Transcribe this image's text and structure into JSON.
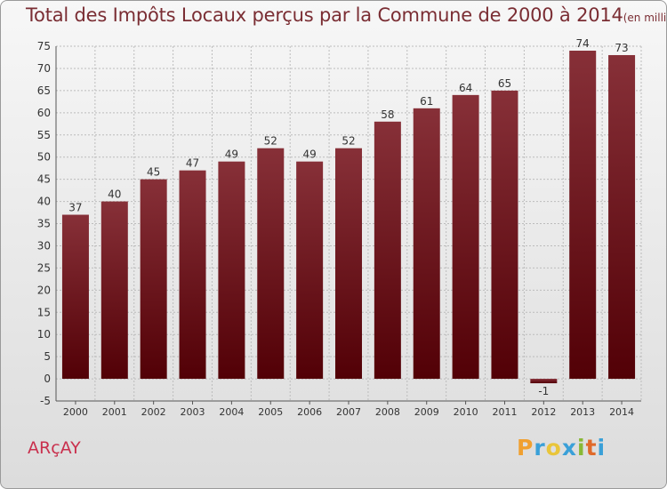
{
  "header": {
    "title": "Total des Impôts Locaux perçus par la Commune de 2000 à 2014",
    "unit": "(en milliers d'€)"
  },
  "commune": "ARçAY",
  "logo": {
    "letters": [
      "P",
      "r",
      "o",
      "x",
      "i",
      "t",
      "i"
    ],
    "colors": [
      "#f0a030",
      "#3aa0d8",
      "#e9c53a",
      "#3aa0d8",
      "#88b835",
      "#e06a2a",
      "#3aa0d8"
    ]
  },
  "colors": {
    "bar_top": "#873038",
    "bar_bottom": "#520006",
    "grid": "#bcbcbc",
    "axis_text": "#333333",
    "title": "#7a2d33"
  },
  "chart_data": {
    "type": "bar",
    "categories": [
      "2000",
      "2001",
      "2002",
      "2003",
      "2004",
      "2005",
      "2006",
      "2007",
      "2008",
      "2009",
      "2010",
      "2011",
      "2012",
      "2013",
      "2014"
    ],
    "values": [
      37,
      40,
      45,
      47,
      49,
      52,
      49,
      52,
      58,
      61,
      64,
      65,
      -1,
      74,
      73
    ],
    "data_labels": [
      "37",
      "40",
      "45",
      "47",
      "49",
      "52",
      "49",
      "52",
      "58",
      "61",
      "64",
      "65",
      "-1",
      "74",
      "73"
    ],
    "title": "Total des Impôts Locaux perçus par la Commune de 2000 à 2014",
    "ylim": [
      -5,
      75
    ],
    "yticks": [
      -5,
      0,
      5,
      10,
      15,
      20,
      25,
      30,
      35,
      40,
      45,
      50,
      55,
      60,
      65,
      70,
      75
    ],
    "grid": true,
    "legend": "none"
  }
}
